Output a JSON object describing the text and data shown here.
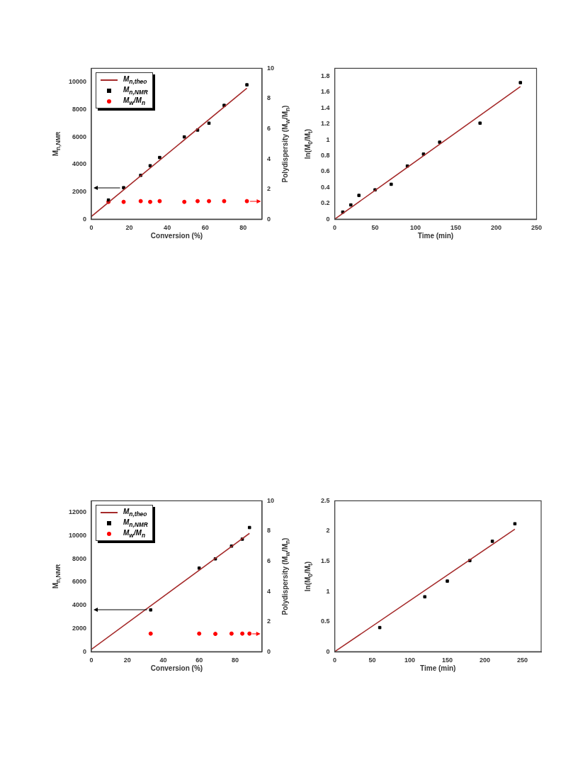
{
  "chart_data": [
    {
      "type": "scatter",
      "xlabel": "Conversion (%)",
      "ylabel": "M$_{n,NMR}$",
      "y2label": "Polydispersity (M$_{w}$/M$_{n}$)",
      "xlim": [
        0,
        90
      ],
      "xticks": [
        0,
        20,
        40,
        60,
        80
      ],
      "ylim": [
        0,
        11000
      ],
      "yticks": [
        0,
        2000,
        4000,
        6000,
        8000,
        10000
      ],
      "y2lim": [
        0,
        10
      ],
      "y2ticks": [
        0,
        2,
        4,
        6,
        8,
        10
      ],
      "grid": false,
      "legend": "top left",
      "series": [
        {
          "name": "M$_{n,theo}$",
          "type": "line",
          "color": "#a52a2a",
          "marker": "none",
          "line_style": "solid",
          "x": [
            0,
            82
          ],
          "values": [
            200,
            9550
          ]
        },
        {
          "name": "M$_{n,NMR}$",
          "type": "scatter",
          "color": "#000000",
          "marker": "square",
          "x": [
            9,
            17,
            26,
            31,
            36,
            49,
            56,
            62,
            70,
            82
          ],
          "values": [
            1400,
            2300,
            3200,
            3900,
            4500,
            6000,
            6500,
            7000,
            8300,
            9800
          ]
        },
        {
          "name": "M$_{w}$/M$_{n}$",
          "type": "scatter",
          "color": "#ff0000",
          "marker": "circle",
          "axis": "y2",
          "x": [
            9,
            17,
            26,
            31,
            36,
            49,
            56,
            62,
            70,
            82
          ],
          "values": [
            1.15,
            1.15,
            1.2,
            1.15,
            1.2,
            1.15,
            1.2,
            1.2,
            1.2,
            1.2
          ]
        }
      ]
    },
    {
      "type": "scatter",
      "xlabel": "Time (min)",
      "ylabel": "ln(M$_{0}$/M$_{t}$)",
      "xlim": [
        0,
        250
      ],
      "xticks": [
        0,
        50,
        100,
        150,
        200,
        250
      ],
      "ylim": [
        0,
        1.9
      ],
      "yticks": [
        0,
        0.2,
        0.4,
        0.6,
        0.8,
        1,
        1.2,
        1.4,
        1.6,
        1.8
      ],
      "grid": false,
      "series": [
        {
          "type": "line",
          "color": "#a52a2a",
          "marker": "none",
          "line_style": "solid",
          "x": [
            0,
            230
          ],
          "values": [
            0,
            1.67
          ]
        },
        {
          "type": "scatter",
          "color": "#000000",
          "marker": "square",
          "x": [
            10,
            20,
            30,
            50,
            70,
            90,
            110,
            130,
            180,
            230
          ],
          "values": [
            0.09,
            0.18,
            0.3,
            0.37,
            0.44,
            0.67,
            0.82,
            0.97,
            1.21,
            1.72
          ]
        }
      ]
    },
    {
      "type": "scatter",
      "xlabel": "Conversion (%)",
      "ylabel": "M$_{n,NMR}$",
      "y2label": "Polydispersity (M$_{w}$/M$_{n}$)",
      "xlim": [
        0,
        95
      ],
      "xticks": [
        0,
        20,
        40,
        60,
        80
      ],
      "ylim": [
        0,
        13000
      ],
      "yticks": [
        0,
        2000,
        4000,
        6000,
        8000,
        10000,
        12000
      ],
      "y2lim": [
        0,
        10
      ],
      "y2ticks": [
        0,
        2,
        4,
        6,
        8,
        10
      ],
      "grid": false,
      "legend": "top left",
      "series": [
        {
          "name": "M$_{n,theo}$",
          "type": "line",
          "color": "#a52a2a",
          "marker": "none",
          "line_style": "solid",
          "x": [
            0,
            88
          ],
          "values": [
            200,
            10200
          ]
        },
        {
          "name": "M$_{n,NMR}$",
          "type": "scatter",
          "color": "#000000",
          "marker": "square",
          "x": [
            33,
            60,
            69,
            78,
            84,
            88
          ],
          "values": [
            3600,
            7200,
            8000,
            9100,
            9700,
            10700
          ]
        },
        {
          "name": "M$_{w}$/M$_{n}$",
          "type": "scatter",
          "color": "#ff0000",
          "marker": "circle",
          "axis": "y2",
          "x": [
            33,
            60,
            69,
            78,
            84,
            88
          ],
          "values": [
            1.2,
            1.2,
            1.18,
            1.2,
            1.2,
            1.2
          ]
        }
      ]
    },
    {
      "type": "scatter",
      "xlabel": "Time (min)",
      "ylabel": "ln(M$_{0}$/M$_{t}$)",
      "xlim": [
        0,
        275
      ],
      "xticks": [
        0,
        50,
        100,
        150,
        200,
        250
      ],
      "ylim": [
        0,
        2.5
      ],
      "yticks": [
        0,
        0.5,
        1,
        1.5,
        2,
        2.5
      ],
      "grid": false,
      "series": [
        {
          "type": "line",
          "color": "#a52a2a",
          "marker": "none",
          "line_style": "solid",
          "x": [
            0,
            240
          ],
          "values": [
            0,
            2.03
          ]
        },
        {
          "type": "scatter",
          "color": "#000000",
          "marker": "square",
          "x": [
            60,
            120,
            150,
            180,
            210,
            240
          ],
          "values": [
            0.4,
            0.91,
            1.17,
            1.51,
            1.83,
            2.12
          ]
        }
      ]
    }
  ]
}
